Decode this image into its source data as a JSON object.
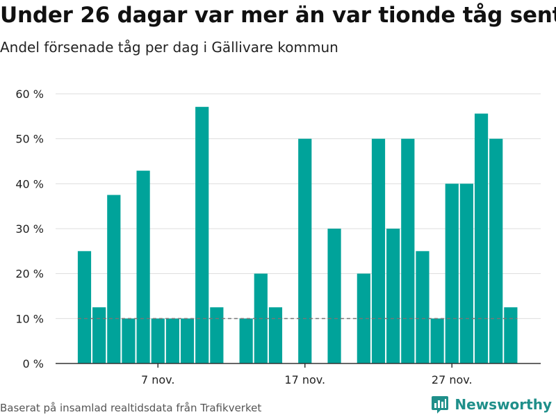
{
  "header": {
    "title": "Under 26 dagar var mer än var tionde tåg sent",
    "subtitle": "Andel försenade tåg per dag i Gällivare kommun"
  },
  "footer": {
    "source": "Baserat på insamlad realtidsdata från Trafikverket",
    "brand": "Newsworthy"
  },
  "colors": {
    "bar": "#00a39a",
    "reference_line": "#777777",
    "grid": "#dddddd",
    "brand": "#1f8f8a"
  },
  "chart_data": {
    "type": "bar",
    "title": "Under 26 dagar var mer än var tionde tåg sent",
    "subtitle": "Andel försenade tåg per dag i Gällivare kommun",
    "xlabel": "",
    "ylabel": "",
    "x": [
      "2 nov.",
      "3 nov.",
      "4 nov.",
      "5 nov.",
      "6 nov.",
      "7 nov.",
      "8 nov.",
      "9 nov.",
      "10 nov.",
      "11 nov.",
      "12 nov.",
      "13 nov.",
      "14 nov.",
      "15 nov.",
      "16 nov.",
      "17 nov.",
      "18 nov.",
      "19 nov.",
      "20 nov.",
      "21 nov.",
      "22 nov.",
      "23 nov.",
      "24 nov.",
      "25 nov.",
      "26 nov.",
      "27 nov.",
      "28 nov.",
      "29 nov.",
      "30 nov.",
      "1 dec."
    ],
    "values": [
      25,
      12.5,
      37.5,
      10,
      42.9,
      10,
      10,
      10,
      57.1,
      12.5,
      null,
      10,
      20,
      12.5,
      null,
      50,
      null,
      30,
      null,
      20,
      50,
      30,
      50,
      25,
      10,
      40,
      40,
      55.6,
      50,
      12.5
    ],
    "xticks": [
      "7 nov.",
      "17 nov.",
      "27 nov."
    ],
    "xtick_indices": [
      5,
      15,
      25
    ],
    "yticks": [
      0,
      10,
      20,
      30,
      40,
      50,
      60
    ],
    "ytick_labels": [
      "0 %",
      "10 %",
      "20 %",
      "30 %",
      "40 %",
      "50 %",
      "60 %"
    ],
    "ylim": [
      0,
      60
    ],
    "reference_line": 10,
    "grid": true,
    "unit": "%"
  }
}
